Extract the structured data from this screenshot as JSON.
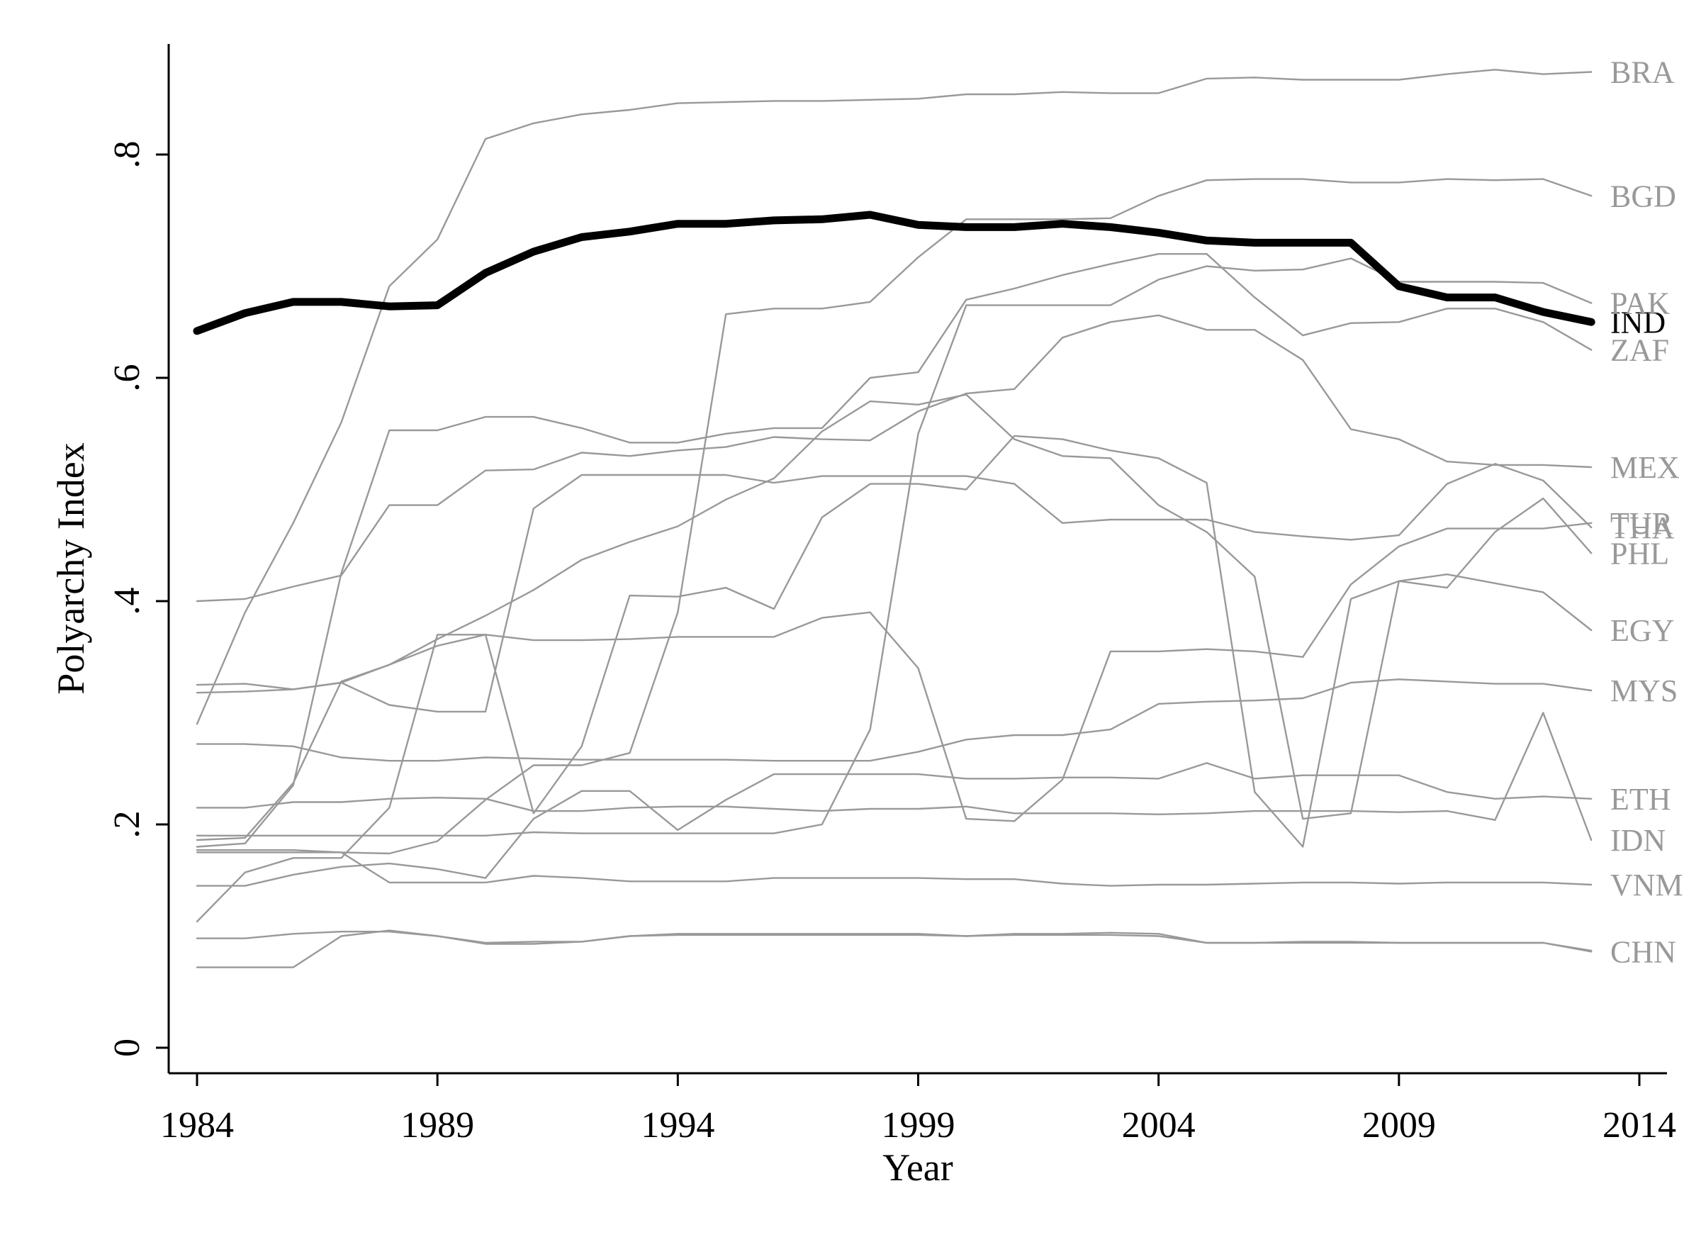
{
  "chart_data": {
    "type": "line",
    "xlabel": "Year",
    "ylabel": "Polyarchy Index",
    "xlim": [
      1984,
      2014
    ],
    "ylim": [
      0,
      0.9
    ],
    "x_ticks": [
      1984,
      1989,
      1994,
      1999,
      2004,
      2009,
      2014
    ],
    "x_tick_labels": [
      "1984",
      "1989",
      "1994",
      "1999",
      "2004",
      "2009",
      "2014"
    ],
    "y_ticks": [
      0,
      0.2,
      0.4,
      0.6,
      0.8
    ],
    "y_tick_labels": [
      "0",
      ".2",
      ".4",
      ".6",
      ".8"
    ],
    "grid": false,
    "legend": "none (series labeled at line ends)",
    "highlight_color": "#000000",
    "other_color": "#999999",
    "x": [
      1984,
      1985,
      1986,
      1987,
      1988,
      1989,
      1990,
      1991,
      1992,
      1993,
      1994,
      1995,
      1996,
      1997,
      1998,
      1999,
      2000,
      2001,
      2002,
      2003,
      2004,
      2005,
      2006,
      2007,
      2008,
      2009,
      2010,
      2011,
      2012,
      2013
    ],
    "series": [
      {
        "name": "IND",
        "highlight": true,
        "values": [
          0.642,
          0.658,
          0.668,
          0.668,
          0.664,
          0.665,
          0.694,
          0.713,
          0.726,
          0.731,
          0.738,
          0.738,
          0.741,
          0.742,
          0.746,
          0.737,
          0.735,
          0.735,
          0.738,
          0.735,
          0.73,
          0.723,
          0.721,
          0.721,
          0.721,
          0.682,
          0.672,
          0.672,
          0.659,
          0.65
        ]
      },
      {
        "name": "BRA",
        "values": [
          0.29,
          0.39,
          0.47,
          0.56,
          0.682,
          0.724,
          0.814,
          0.828,
          0.836,
          0.84,
          0.846,
          0.847,
          0.848,
          0.848,
          0.849,
          0.85,
          0.854,
          0.854,
          0.856,
          0.855,
          0.855,
          0.868,
          0.869,
          0.867,
          0.867,
          0.867,
          0.872,
          0.876,
          0.872,
          0.874
        ]
      },
      {
        "name": "ZAF",
        "values": [
          0.18,
          0.183,
          0.235,
          0.425,
          0.553,
          0.553,
          0.565,
          0.565,
          0.555,
          0.542,
          0.542,
          0.55,
          0.555,
          0.555,
          0.6,
          0.605,
          0.67,
          0.68,
          0.692,
          0.702,
          0.711,
          0.711,
          0.672,
          0.638,
          0.649,
          0.65,
          0.662,
          0.662,
          0.65,
          0.625
        ]
      },
      {
        "name": "IDN",
        "values": [
          0.215,
          0.215,
          0.22,
          0.22,
          0.223,
          0.224,
          0.223,
          0.212,
          0.212,
          0.215,
          0.216,
          0.216,
          0.214,
          0.212,
          0.214,
          0.214,
          0.216,
          0.21,
          0.21,
          0.21,
          0.209,
          0.21,
          0.212,
          0.212,
          0.212,
          0.211,
          0.212,
          0.204,
          0.3,
          0.186
        ]
      },
      {
        "name": "MEX",
        "values": [
          0.4,
          0.402,
          0.413,
          0.423,
          0.486,
          0.486,
          0.517,
          0.518,
          0.533,
          0.53,
          0.535,
          0.538,
          0.547,
          0.545,
          0.544,
          0.57,
          0.586,
          0.59,
          0.636,
          0.65,
          0.656,
          0.643,
          0.643,
          0.616,
          0.554,
          0.545,
          0.525,
          0.522,
          0.522,
          0.52
        ]
      },
      {
        "name": "PHL",
        "values": [
          0.113,
          0.157,
          0.17,
          0.17,
          0.215,
          0.37,
          0.37,
          0.21,
          0.27,
          0.405,
          0.404,
          0.412,
          0.393,
          0.475,
          0.505,
          0.505,
          0.5,
          0.548,
          0.545,
          0.535,
          0.528,
          0.506,
          0.229,
          0.18,
          0.402,
          0.418,
          0.412,
          0.462,
          0.492,
          0.443
        ]
      },
      {
        "name": "TUR",
        "values": [
          0.318,
          0.319,
          0.321,
          0.327,
          0.343,
          0.36,
          0.37,
          0.365,
          0.365,
          0.366,
          0.368,
          0.368,
          0.368,
          0.385,
          0.39,
          0.34,
          0.205,
          0.203,
          0.24,
          0.355,
          0.355,
          0.357,
          0.355,
          0.35,
          0.415,
          0.449,
          0.465,
          0.465,
          0.465,
          0.47
        ]
      },
      {
        "name": "PAK",
        "values": [
          0.19,
          0.19,
          0.19,
          0.19,
          0.19,
          0.19,
          0.19,
          0.193,
          0.192,
          0.192,
          0.192,
          0.192,
          0.192,
          0.2,
          0.285,
          0.55,
          0.665,
          0.665,
          0.665,
          0.665,
          0.688,
          0.7,
          0.696,
          0.697,
          0.707,
          0.686,
          0.686,
          0.686,
          0.685,
          0.667
        ]
      },
      {
        "name": "THA",
        "values": [
          0.325,
          0.326,
          0.321,
          0.327,
          0.307,
          0.301,
          0.301,
          0.483,
          0.513,
          0.513,
          0.513,
          0.513,
          0.506,
          0.512,
          0.512,
          0.512,
          0.512,
          0.505,
          0.47,
          0.473,
          0.473,
          0.473,
          0.462,
          0.458,
          0.455,
          0.459,
          0.505,
          0.523,
          0.508,
          0.466
        ]
      },
      {
        "name": "BGD",
        "values": [
          0.177,
          0.177,
          0.177,
          0.175,
          0.174,
          0.185,
          0.222,
          0.253,
          0.253,
          0.264,
          0.39,
          0.657,
          0.662,
          0.662,
          0.668,
          0.708,
          0.742,
          0.742,
          0.742,
          0.743,
          0.763,
          0.777,
          0.778,
          0.778,
          0.775,
          0.775,
          0.778,
          0.777,
          0.778,
          0.763
        ]
      },
      {
        "name": "MYS",
        "values": [
          0.272,
          0.272,
          0.27,
          0.26,
          0.257,
          0.257,
          0.26,
          0.259,
          0.258,
          0.258,
          0.258,
          0.258,
          0.257,
          0.257,
          0.257,
          0.265,
          0.276,
          0.28,
          0.28,
          0.285,
          0.308,
          0.31,
          0.311,
          0.313,
          0.327,
          0.33,
          0.328,
          0.326,
          0.326,
          0.32
        ]
      },
      {
        "name": "ETH",
        "values": [
          0.145,
          0.145,
          0.155,
          0.162,
          0.165,
          0.16,
          0.152,
          0.205,
          0.23,
          0.23,
          0.195,
          0.222,
          0.245,
          0.245,
          0.245,
          0.245,
          0.241,
          0.241,
          0.242,
          0.242,
          0.241,
          0.255,
          0.241,
          0.244,
          0.244,
          0.244,
          0.229,
          0.223,
          0.225,
          0.223
        ]
      },
      {
        "name": "EGY",
        "values": [
          0.186,
          0.188,
          0.237,
          0.328,
          0.343,
          0.366,
          0.387,
          0.41,
          0.437,
          0.453,
          0.467,
          0.491,
          0.51,
          0.552,
          0.579,
          0.576,
          0.585,
          0.545,
          0.53,
          0.528,
          0.486,
          0.462,
          0.422,
          0.205,
          0.21,
          0.418,
          0.424,
          0.416,
          0.408,
          0.374
        ]
      },
      {
        "name": "VNM",
        "values": [
          0.175,
          0.175,
          0.175,
          0.175,
          0.148,
          0.148,
          0.148,
          0.154,
          0.152,
          0.149,
          0.149,
          0.149,
          0.152,
          0.152,
          0.152,
          0.152,
          0.151,
          0.151,
          0.147,
          0.145,
          0.146,
          0.146,
          0.147,
          0.148,
          0.148,
          0.147,
          0.148,
          0.148,
          0.148,
          0.146
        ]
      },
      {
        "name": "CHN",
        "values": [
          0.072,
          0.072,
          0.072,
          0.1,
          0.105,
          0.1,
          0.093,
          0.093,
          0.095,
          0.1,
          0.102,
          0.102,
          0.102,
          0.102,
          0.102,
          0.102,
          0.1,
          0.102,
          0.102,
          0.103,
          0.102,
          0.094,
          0.094,
          0.095,
          0.095,
          0.094,
          0.094,
          0.094,
          0.094,
          0.086
        ]
      },
      {
        "name": "",
        "values": [
          0.098,
          0.098,
          0.102,
          0.104,
          0.104,
          0.1,
          0.094,
          0.095,
          0.095,
          0.1,
          0.101,
          0.101,
          0.101,
          0.101,
          0.101,
          0.101,
          0.1,
          0.101,
          0.101,
          0.101,
          0.1,
          0.094,
          0.094,
          0.094,
          0.094,
          0.094,
          0.094,
          0.094,
          0.094,
          0.087
        ]
      }
    ]
  }
}
